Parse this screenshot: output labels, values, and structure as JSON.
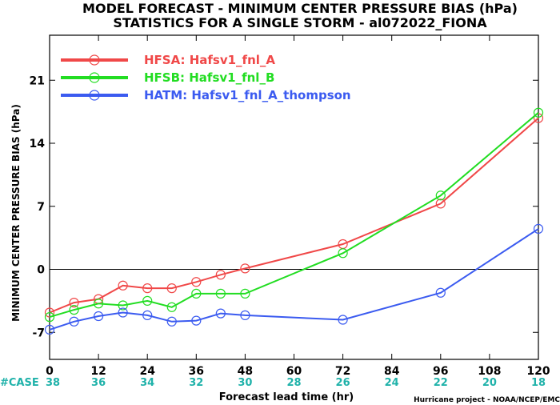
{
  "title_line1": "MODEL FORECAST - MINIMUM CENTER PRESSURE BIAS (hPa)",
  "title_line2": "STATISTICS FOR A SINGLE STORM - al072022_FIONA",
  "credit": "Hurricane project - NOAA/NCEP/EMC",
  "case_label": "#CASE",
  "case_color": "#20b2aa",
  "chart_data": {
    "type": "line",
    "xlabel": "Forecast lead time (hr)",
    "ylabel": "MINIMUM CENTER PRESSURE BIAS (hPa)",
    "xlim": [
      0,
      120
    ],
    "ylim": [
      -10,
      26
    ],
    "x_ticks": [
      0,
      12,
      24,
      36,
      48,
      60,
      72,
      84,
      96,
      108,
      120
    ],
    "y_ticks": [
      -7,
      0,
      7,
      14,
      21
    ],
    "zero_line": true,
    "legend_position": "top-left",
    "cases": [
      38,
      36,
      34,
      32,
      30,
      28,
      26,
      24,
      22,
      20,
      18
    ],
    "series": [
      {
        "name": "HFSA: Hafsv1_fnl_A",
        "color": "#f04848",
        "x": [
          0,
          6,
          12,
          18,
          24,
          30,
          36,
          42,
          48,
          72,
          96,
          120
        ],
        "y": [
          -4.8,
          -3.7,
          -3.3,
          -1.8,
          -2.1,
          -2.1,
          -1.4,
          -0.6,
          0.1,
          2.8,
          7.3,
          16.8
        ]
      },
      {
        "name": "HFSB: Hafsv1_fnl_B",
        "color": "#22dd22",
        "x": [
          0,
          6,
          12,
          18,
          24,
          30,
          36,
          42,
          48,
          72,
          96,
          120
        ],
        "y": [
          -5.3,
          -4.5,
          -3.8,
          -4.0,
          -3.5,
          -4.2,
          -2.7,
          -2.7,
          -2.7,
          1.8,
          8.2,
          17.4
        ]
      },
      {
        "name": "HATM: Hafsv1_fnl_A_thompson",
        "color": "#3b5bf0",
        "x": [
          0,
          6,
          12,
          18,
          24,
          30,
          36,
          42,
          48,
          72,
          96,
          120
        ],
        "y": [
          -6.7,
          -5.8,
          -5.2,
          -4.8,
          -5.1,
          -5.8,
          -5.7,
          -4.9,
          -5.1,
          -5.6,
          -2.6,
          4.5
        ]
      }
    ]
  }
}
